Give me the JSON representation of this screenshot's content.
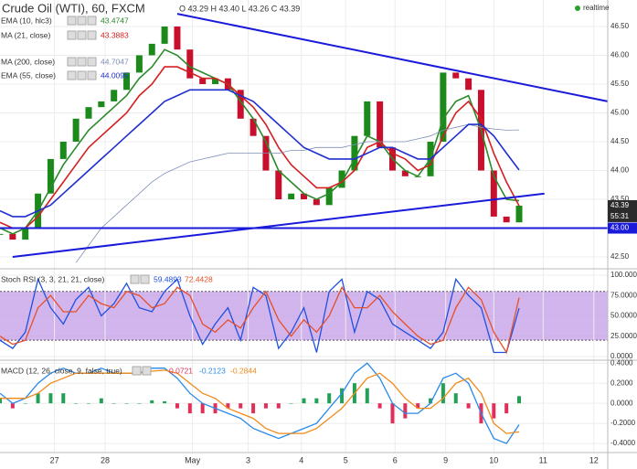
{
  "header": {
    "symbol": "Crude Oil (WTI), 60, FXCM",
    "ohlc": "O 43.29 H 43.40 L 43.26 C 43.39",
    "status": "realtime"
  },
  "chart_data": [
    {
      "type": "candlestick",
      "x": [
        0,
        1,
        2,
        3,
        4,
        5,
        6,
        7,
        8,
        9,
        10,
        11,
        12,
        13,
        14,
        15,
        16,
        17,
        18,
        19,
        20,
        21,
        22,
        23,
        24,
        25,
        26,
        27,
        28,
        29,
        30,
        31,
        32,
        33,
        34,
        35,
        36,
        37,
        38,
        39,
        40,
        41
      ],
      "closes": [
        42.9,
        42.8,
        43.0,
        43.6,
        44.2,
        44.5,
        44.9,
        45.1,
        45.2,
        45.4,
        45.7,
        46.0,
        46.2,
        46.5,
        46.1,
        45.6,
        45.5,
        45.6,
        45.4,
        44.9,
        44.6,
        44.0,
        43.5,
        43.6,
        43.5,
        43.4,
        43.7,
        44.0,
        44.6,
        45.2,
        44.4,
        44.0,
        43.9,
        43.9,
        44.5,
        45.7,
        45.6,
        45.4,
        44.0,
        43.2,
        43.1,
        43.39
      ],
      "up_color": "#1b8a1b",
      "down_color": "#c8102e",
      "series": [
        {
          "name": "EMA (10, hlc3)",
          "color": "#2a8a2a",
          "values": [
            43.0,
            42.9,
            43.0,
            43.3,
            43.7,
            44.1,
            44.4,
            44.7,
            44.9,
            45.1,
            45.3,
            45.6,
            45.8,
            46.1,
            46.0,
            45.8,
            45.7,
            45.6,
            45.5,
            45.2,
            44.9,
            44.5,
            44.0,
            43.8,
            43.6,
            43.5,
            43.6,
            43.8,
            44.2,
            44.6,
            44.5,
            44.2,
            44.0,
            43.9,
            44.2,
            44.9,
            45.2,
            45.3,
            44.7,
            43.9,
            43.5,
            43.4747
          ]
        },
        {
          "name": "MA (21, close)",
          "color": "#d42020",
          "values": [
            43.1,
            43.0,
            43.0,
            43.2,
            43.5,
            43.8,
            44.1,
            44.4,
            44.6,
            44.8,
            45.0,
            45.3,
            45.5,
            45.8,
            45.8,
            45.7,
            45.6,
            45.6,
            45.5,
            45.3,
            45.1,
            44.8,
            44.4,
            44.1,
            43.9,
            43.7,
            43.7,
            43.8,
            44.0,
            44.4,
            44.5,
            44.3,
            44.2,
            44.0,
            44.1,
            44.6,
            45.0,
            45.2,
            44.9,
            44.3,
            43.8,
            43.3883
          ]
        },
        {
          "name": "MA (200, close)",
          "color": "#7f8fb8",
          "values": [
            null,
            null,
            null,
            null,
            null,
            null,
            42.4,
            42.7,
            43.0,
            43.2,
            43.4,
            43.6,
            43.8,
            43.95,
            44.05,
            44.15,
            44.2,
            44.25,
            44.3,
            44.3,
            44.3,
            44.3,
            44.3,
            44.35,
            44.35,
            44.4,
            44.4,
            44.4,
            44.45,
            44.5,
            44.5,
            44.5,
            44.5,
            44.55,
            44.6,
            44.7,
            44.75,
            44.8,
            44.75,
            44.72,
            44.7,
            44.7047
          ]
        },
        {
          "name": "EMA (55, close)",
          "color": "#1f2fd0",
          "values": [
            43.3,
            43.2,
            43.2,
            43.3,
            43.4,
            43.6,
            43.8,
            44.0,
            44.2,
            44.4,
            44.6,
            44.8,
            45.0,
            45.2,
            45.3,
            45.4,
            45.4,
            45.4,
            45.4,
            45.3,
            45.2,
            45.0,
            44.8,
            44.6,
            44.4,
            44.3,
            44.2,
            44.2,
            44.2,
            44.3,
            44.4,
            44.4,
            44.3,
            44.2,
            44.2,
            44.4,
            44.6,
            44.8,
            44.8,
            44.6,
            44.3,
            44.0095
          ]
        }
      ],
      "trend_lines": [
        {
          "color": "#1a1adb",
          "x": [
            14,
            48
          ],
          "values": [
            46.72,
            45.2
          ]
        },
        {
          "color": "#1a1adb",
          "x": [
            1,
            43
          ],
          "values": [
            42.5,
            43.6
          ]
        }
      ],
      "h_line": {
        "value": 43.0,
        "label": "43.00",
        "color": "#1a1adb"
      },
      "countdown": "55:31",
      "xlim": [
        0,
        48
      ],
      "ylim": [
        42.31,
        46.96
      ],
      "yticks": [
        {
          "value": 42.5,
          "label": "42.50"
        },
        {
          "value": 43.0,
          "label": "43.00"
        },
        {
          "value": 43.5,
          "label": "43.50"
        },
        {
          "value": 44.0,
          "label": "44.00"
        },
        {
          "value": 44.5,
          "label": "44.50"
        },
        {
          "value": 45.0,
          "label": "45.00"
        },
        {
          "value": 45.5,
          "label": "45.50"
        },
        {
          "value": 46.0,
          "label": "46.00"
        },
        {
          "value": 46.5,
          "label": "46.50"
        }
      ]
    },
    {
      "type": "line",
      "title": "Stoch RSI (3, 3, 21, 21, close)",
      "x": [
        0,
        1,
        2,
        3,
        4,
        5,
        6,
        7,
        8,
        9,
        10,
        11,
        12,
        13,
        14,
        15,
        16,
        17,
        18,
        19,
        20,
        21,
        22,
        23,
        24,
        25,
        26,
        27,
        28,
        29,
        30,
        31,
        32,
        33,
        34,
        35,
        36,
        37,
        38,
        39,
        40,
        41
      ],
      "series": [
        {
          "color": "#2050e0",
          "values": [
            20,
            10,
            30,
            95,
            60,
            40,
            70,
            85,
            50,
            65,
            90,
            60,
            55,
            80,
            95,
            50,
            15,
            40,
            60,
            20,
            85,
            75,
            10,
            30,
            60,
            5,
            80,
            95,
            30,
            80,
            70,
            40,
            30,
            20,
            10,
            30,
            95,
            75,
            60,
            5,
            5,
            59.4893
          ]
        },
        {
          "color": "#e4502a",
          "values": [
            25,
            15,
            20,
            60,
            75,
            55,
            55,
            75,
            65,
            60,
            80,
            75,
            60,
            65,
            85,
            75,
            40,
            30,
            45,
            35,
            60,
            80,
            45,
            25,
            45,
            30,
            50,
            85,
            60,
            60,
            75,
            55,
            40,
            25,
            15,
            20,
            60,
            85,
            70,
            30,
            5,
            72.4428
          ]
        }
      ],
      "band": [
        20,
        80
      ],
      "band_color": "#c8a2e8",
      "xlim": [
        0,
        48
      ],
      "ylim": [
        -3.4,
        106.7
      ],
      "yticks": [
        {
          "value": 0,
          "label": "0.0000"
        },
        {
          "value": 25,
          "label": "25.0000"
        },
        {
          "value": 50,
          "label": "50.0000"
        },
        {
          "value": 75,
          "label": "75.0000"
        },
        {
          "value": 100,
          "label": "100.0000"
        }
      ]
    },
    {
      "type": "macd",
      "title": "MACD (12, 26, close, 9, false, true)",
      "x": [
        0,
        1,
        2,
        3,
        4,
        5,
        6,
        7,
        8,
        9,
        10,
        11,
        12,
        13,
        14,
        15,
        16,
        17,
        18,
        19,
        20,
        21,
        22,
        23,
        24,
        25,
        26,
        27,
        28,
        29,
        30,
        31,
        32,
        33,
        34,
        35,
        36,
        37,
        38,
        39,
        40,
        41
      ],
      "histogram": {
        "values": [
          0.05,
          -0.05,
          0,
          0.1,
          0.1,
          0.1,
          0,
          0,
          0.05,
          0,
          0,
          0,
          0.03,
          0.02,
          -0.05,
          -0.1,
          -0.1,
          -0.1,
          -0.05,
          -0.05,
          -0.1,
          -0.05,
          -0.05,
          0,
          0.05,
          0.05,
          0.1,
          0.15,
          0.2,
          0.15,
          -0.05,
          -0.2,
          -0.15,
          -0.05,
          0.05,
          0.2,
          0.1,
          -0.05,
          -0.2,
          -0.15,
          -0.1,
          0.0721
        ],
        "positive_color": "#22a055",
        "negative_color": "#e0305a"
      },
      "series": [
        {
          "color": "#2a8ae8",
          "values": [
            0.1,
            0.0,
            0.05,
            0.2,
            0.3,
            0.35,
            0.3,
            0.3,
            0.35,
            0.3,
            0.3,
            0.3,
            0.35,
            0.35,
            0.25,
            0.1,
            0.0,
            -0.05,
            -0.1,
            -0.15,
            -0.25,
            -0.3,
            -0.35,
            -0.3,
            -0.25,
            -0.2,
            -0.05,
            0.1,
            0.3,
            0.4,
            0.25,
            0.0,
            -0.1,
            -0.1,
            0.0,
            0.25,
            0.3,
            0.2,
            -0.1,
            -0.35,
            -0.4,
            -0.2123
          ]
        },
        {
          "color": "#f08a1a",
          "values": [
            0.05,
            0.05,
            0.05,
            0.1,
            0.2,
            0.25,
            0.3,
            0.3,
            0.3,
            0.3,
            0.3,
            0.3,
            0.32,
            0.33,
            0.3,
            0.2,
            0.1,
            0.05,
            -0.05,
            -0.1,
            -0.15,
            -0.25,
            -0.3,
            -0.3,
            -0.3,
            -0.25,
            -0.15,
            -0.05,
            0.1,
            0.25,
            0.3,
            0.2,
            0.05,
            -0.05,
            -0.05,
            0.05,
            0.2,
            0.25,
            0.1,
            -0.2,
            -0.3,
            -0.2844
          ]
        }
      ],
      "xlim": [
        0,
        48
      ],
      "ylim": [
        -0.49,
        0.42
      ],
      "yticks": [
        {
          "value": -0.4,
          "label": "-0.4000"
        },
        {
          "value": -0.2,
          "label": "-0.2000"
        },
        {
          "value": 0,
          "label": "0.0000"
        },
        {
          "value": 0.2,
          "label": "0.2000"
        },
        {
          "value": 0.4,
          "label": "0.4000"
        }
      ],
      "xticks": [
        {
          "value": 4.3,
          "label": "27"
        },
        {
          "value": 8.3,
          "label": "28"
        },
        {
          "value": 15.2,
          "label": "May"
        },
        {
          "value": 19.6,
          "label": "3"
        },
        {
          "value": 23.8,
          "label": "4"
        },
        {
          "value": 27.3,
          "label": "5"
        },
        {
          "value": 31.2,
          "label": "6"
        },
        {
          "value": 35.2,
          "label": "9"
        },
        {
          "value": 39.0,
          "label": "10"
        },
        {
          "value": 42.9,
          "label": "11"
        },
        {
          "value": 46.9,
          "label": "12"
        }
      ]
    }
  ]
}
